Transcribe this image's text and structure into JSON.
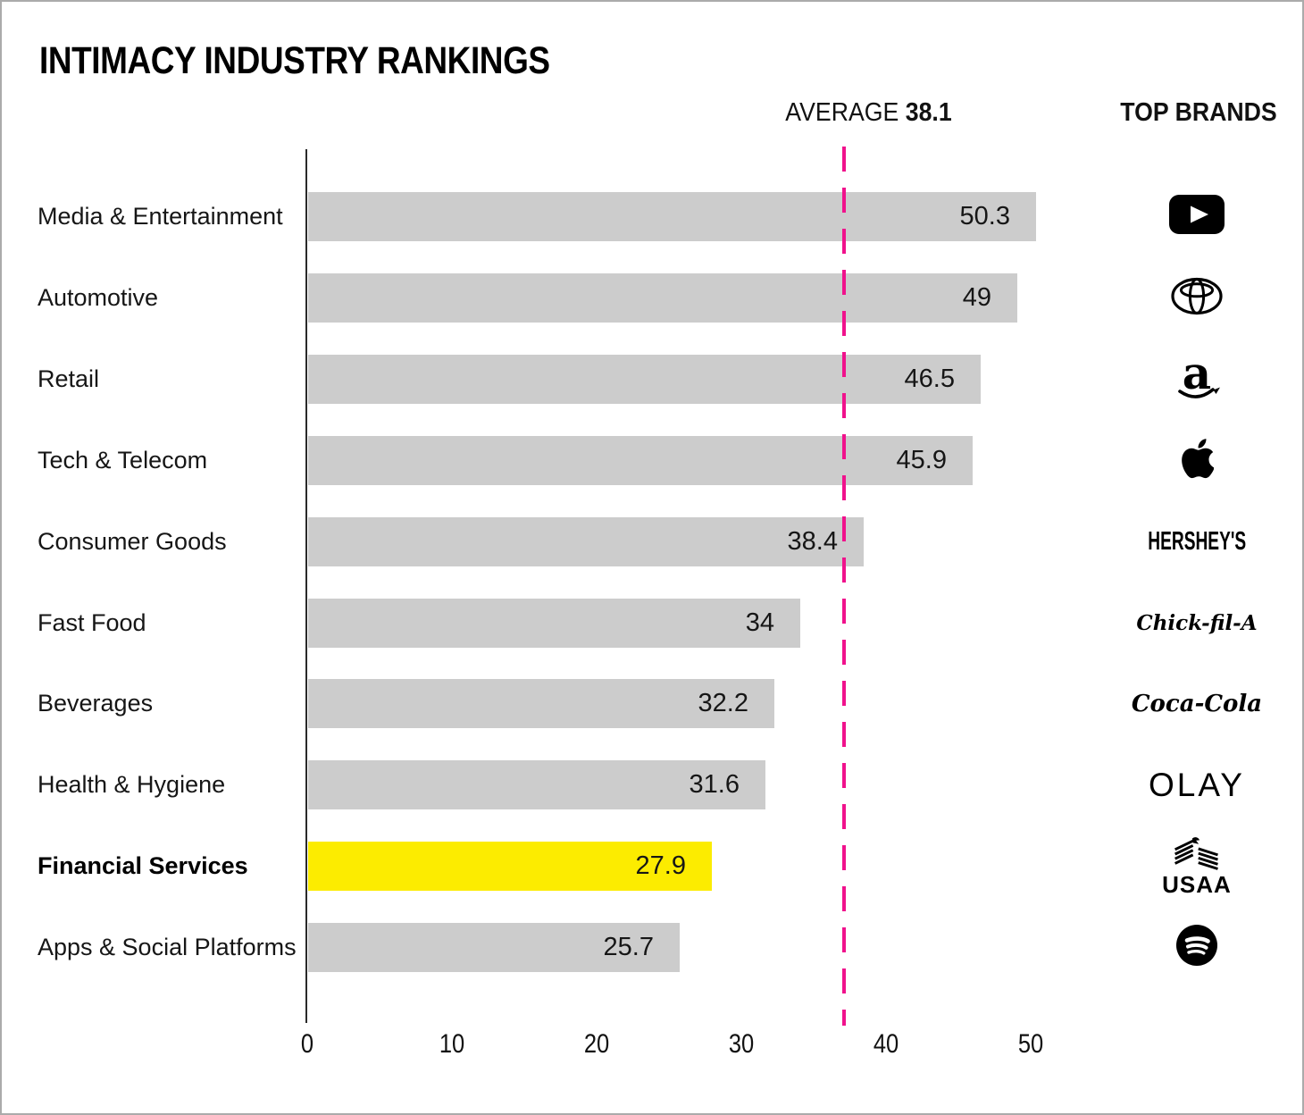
{
  "title": "INTIMACY INDUSTRY RANKINGS",
  "header": {
    "average_label": "AVERAGE",
    "average_value": "38.1",
    "top_brands_label": "TOP BRANDS"
  },
  "colors": {
    "bar": "#cccccc",
    "highlight_bar": "#fcec00",
    "average_line": "#f0128c",
    "text": "#111111"
  },
  "logo_text": {
    "hersheys": "HERSHEY'S",
    "chickfila": "Chick-fil-A",
    "cocacola": "Coca-Cola",
    "olay": "OLAY",
    "usaa": "USAA"
  },
  "chart_data": {
    "type": "bar",
    "orientation": "horizontal",
    "title": "INTIMACY INDUSTRY RANKINGS",
    "categories": [
      "Media & Entertainment",
      "Automotive",
      "Retail",
      "Tech & Telecom",
      "Consumer Goods",
      "Fast Food",
      "Beverages",
      "Health & Hygiene",
      "Financial Services",
      "Apps & Social Platforms"
    ],
    "values": [
      50.3,
      49,
      46.5,
      45.9,
      38.4,
      34,
      32.2,
      31.6,
      27.9,
      25.7
    ],
    "value_labels": [
      "50.3",
      "49",
      "46.5",
      "45.9",
      "38.4",
      "34",
      "32.2",
      "31.6",
      "27.9",
      "25.7"
    ],
    "highlighted_category": "Financial Services",
    "average_line": 38.1,
    "x_ticks": [
      0,
      10,
      20,
      30,
      40,
      50
    ],
    "xlim": [
      0,
      50
    ],
    "grid": false,
    "legend": false,
    "top_brands": [
      "YouTube",
      "Toyota",
      "Amazon",
      "Apple",
      "Hershey's",
      "Chick-fil-A",
      "Coca-Cola",
      "Olay",
      "USAA",
      "Spotify"
    ],
    "logo_keys": [
      "youtube",
      "toyota",
      "amazon",
      "apple",
      "hersheys",
      "chickfila",
      "cocacola",
      "olay",
      "usaa",
      "spotify"
    ]
  }
}
